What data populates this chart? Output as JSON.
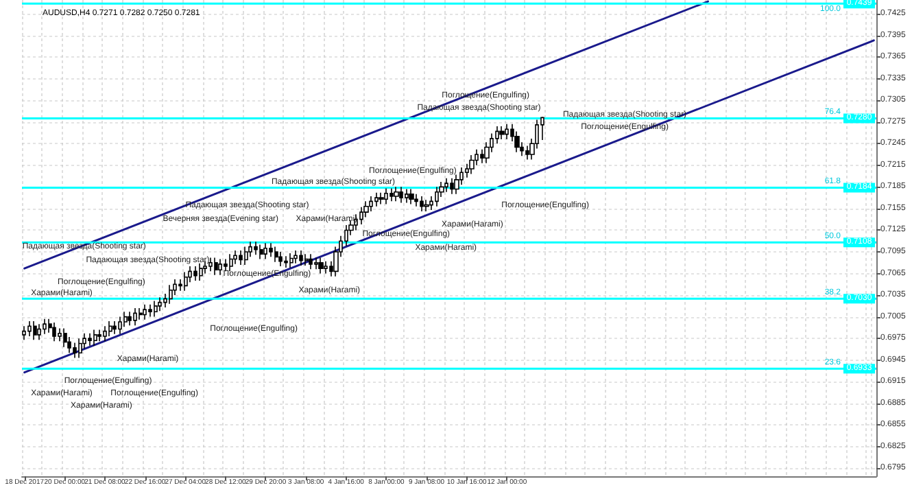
{
  "chart_data": {
    "type": "candlestick",
    "title": "AUDUSD,H4 0.7271 0.7282 0.7250 0.7281",
    "categories": [
      "18 Dec 2017",
      null,
      null,
      null,
      null,
      null,
      null,
      null,
      "20 Dec 00:00",
      null,
      null,
      null,
      null,
      null,
      null,
      null,
      "21 Dec 08:00",
      null,
      null,
      null,
      null,
      null,
      null,
      null,
      "22 Dec 16:00",
      null,
      null,
      null,
      null,
      null,
      null,
      null,
      "27 Dec 04:00",
      null,
      null,
      null,
      null,
      null,
      null,
      null,
      "28 Dec 12:00",
      null,
      null,
      null,
      null,
      null,
      null,
      null,
      "29 Dec 20:00",
      null,
      null,
      null,
      null,
      null,
      null,
      null,
      "3 Jan 08:00",
      null,
      null,
      null,
      null,
      null,
      null,
      null,
      "4 Jan 16:00",
      null,
      null,
      null,
      null,
      null,
      null,
      null,
      "8 Jan 00:00",
      null,
      null,
      null,
      null,
      null,
      null,
      null,
      "9 Jan 08:00",
      null,
      null,
      null,
      null,
      null,
      null,
      null,
      "10 Jan 16:00",
      null,
      null,
      null,
      null,
      null,
      null,
      null,
      "12 Jan 00:00",
      null,
      null,
      null,
      null,
      null,
      null,
      null,
      null,
      null,
      null,
      null,
      null,
      null,
      null,
      null,
      null,
      null,
      null,
      null,
      null,
      null,
      null,
      null,
      null,
      null,
      null,
      null,
      null,
      null,
      null,
      null,
      null,
      null,
      null,
      null,
      null,
      null,
      null,
      null,
      null,
      null,
      null,
      null,
      null,
      null,
      null,
      null,
      null,
      null,
      null,
      null,
      null,
      null,
      null,
      null,
      null,
      null,
      null,
      null,
      null,
      null,
      null,
      null,
      null,
      null,
      null,
      null,
      null,
      null,
      null,
      null,
      null,
      null
    ],
    "ohlc": [
      [
        0.698,
        0.6992,
        0.6973,
        0.6985
      ],
      [
        0.6985,
        0.6999,
        0.6978,
        0.6992
      ],
      [
        0.6992,
        0.6999,
        0.6973,
        0.698
      ],
      [
        0.698,
        0.6995,
        0.6973,
        0.6988
      ],
      [
        0.6988,
        0.7002,
        0.6981,
        0.6995
      ],
      [
        0.6995,
        0.7002,
        0.6983,
        0.699
      ],
      [
        0.699,
        0.6997,
        0.6971,
        0.6978
      ],
      [
        0.6978,
        0.6989,
        0.6971,
        0.6982
      ],
      [
        0.6982,
        0.6989,
        0.6963,
        0.697
      ],
      [
        0.697,
        0.6977,
        0.6955,
        0.6962
      ],
      [
        0.6962,
        0.6969,
        0.6948,
        0.6955
      ],
      [
        0.6955,
        0.6975,
        0.6948,
        0.6968
      ],
      [
        0.6968,
        0.6982,
        0.6961,
        0.6975
      ],
      [
        0.6975,
        0.6982,
        0.6965,
        0.6972
      ],
      [
        0.6972,
        0.6987,
        0.6965,
        0.698
      ],
      [
        0.698,
        0.6987,
        0.6971,
        0.6978
      ],
      [
        0.6978,
        0.6992,
        0.6971,
        0.6985
      ],
      [
        0.6985,
        0.6999,
        0.6978,
        0.6992
      ],
      [
        0.6992,
        0.6999,
        0.6981,
        0.6988
      ],
      [
        0.6988,
        0.7005,
        0.6981,
        0.6998
      ],
      [
        0.6998,
        0.7012,
        0.6991,
        0.7005
      ],
      [
        0.7005,
        0.7012,
        0.6993,
        0.7
      ],
      [
        0.7,
        0.7017,
        0.6993,
        0.701
      ],
      [
        0.701,
        0.7017,
        0.7001,
        0.7008
      ],
      [
        0.7008,
        0.7022,
        0.7001,
        0.7015
      ],
      [
        0.7015,
        0.7022,
        0.7005,
        0.7012
      ],
      [
        0.7012,
        0.7027,
        0.7005,
        0.702
      ],
      [
        0.702,
        0.7032,
        0.7013,
        0.7025
      ],
      [
        0.7025,
        0.7037,
        0.7018,
        0.703
      ],
      [
        0.703,
        0.7049,
        0.7023,
        0.7042
      ],
      [
        0.7042,
        0.7057,
        0.7035,
        0.705
      ],
      [
        0.705,
        0.7057,
        0.7041,
        0.7048
      ],
      [
        0.7048,
        0.7067,
        0.7041,
        0.706
      ],
      [
        0.706,
        0.7075,
        0.7053,
        0.7068
      ],
      [
        0.7068,
        0.7075,
        0.7055,
        0.7062
      ],
      [
        0.7062,
        0.7079,
        0.7055,
        0.7072
      ],
      [
        0.7072,
        0.7082,
        0.7065,
        0.7075
      ],
      [
        0.7075,
        0.7087,
        0.7068,
        0.708
      ],
      [
        0.708,
        0.7087,
        0.7063,
        0.707
      ],
      [
        0.707,
        0.7085,
        0.7063,
        0.7078
      ],
      [
        0.7078,
        0.7085,
        0.7068,
        0.7075
      ],
      [
        0.7075,
        0.7092,
        0.7068,
        0.7085
      ],
      [
        0.7085,
        0.7097,
        0.7078,
        0.709
      ],
      [
        0.709,
        0.7097,
        0.7077,
        0.7084
      ],
      [
        0.7084,
        0.7102,
        0.7077,
        0.7095
      ],
      [
        0.7095,
        0.7109,
        0.7088,
        0.7102
      ],
      [
        0.7102,
        0.7109,
        0.7091,
        0.7098
      ],
      [
        0.7098,
        0.7105,
        0.7085,
        0.7092
      ],
      [
        0.7092,
        0.7107,
        0.7085,
        0.71
      ],
      [
        0.71,
        0.7107,
        0.7088,
        0.7095
      ],
      [
        0.7095,
        0.7102,
        0.7081,
        0.7088
      ],
      [
        0.7088,
        0.7095,
        0.7075,
        0.7082
      ],
      [
        0.7082,
        0.7089,
        0.7073,
        0.708
      ],
      [
        0.708,
        0.7093,
        0.7073,
        0.7086
      ],
      [
        0.7086,
        0.7097,
        0.7079,
        0.709
      ],
      [
        0.709,
        0.7097,
        0.7076,
        0.7083
      ],
      [
        0.7083,
        0.7092,
        0.7076,
        0.7085
      ],
      [
        0.7085,
        0.7092,
        0.7071,
        0.7078
      ],
      [
        0.7078,
        0.7087,
        0.7071,
        0.708
      ],
      [
        0.708,
        0.7087,
        0.7065,
        0.7072
      ],
      [
        0.7072,
        0.7082,
        0.7065,
        0.7075
      ],
      [
        0.7075,
        0.7082,
        0.7061,
        0.7068
      ],
      [
        0.7068,
        0.7102,
        0.7061,
        0.7095
      ],
      [
        0.7095,
        0.7117,
        0.7088,
        0.711
      ],
      [
        0.711,
        0.7132,
        0.7103,
        0.7125
      ],
      [
        0.7125,
        0.7139,
        0.7118,
        0.7132
      ],
      [
        0.7132,
        0.7147,
        0.7125,
        0.714
      ],
      [
        0.714,
        0.7157,
        0.7133,
        0.715
      ],
      [
        0.715,
        0.7165,
        0.7143,
        0.7158
      ],
      [
        0.7158,
        0.7172,
        0.7151,
        0.7165
      ],
      [
        0.7165,
        0.7177,
        0.7158,
        0.717
      ],
      [
        0.717,
        0.7177,
        0.7161,
        0.7168
      ],
      [
        0.7168,
        0.7183,
        0.7161,
        0.7176
      ],
      [
        0.7176,
        0.7183,
        0.7165,
        0.7172
      ],
      [
        0.7172,
        0.7185,
        0.7165,
        0.7178
      ],
      [
        0.7178,
        0.7185,
        0.7163,
        0.717
      ],
      [
        0.717,
        0.7182,
        0.7163,
        0.7175
      ],
      [
        0.7175,
        0.7182,
        0.7161,
        0.7168
      ],
      [
        0.7168,
        0.7175,
        0.7158,
        0.7165
      ],
      [
        0.7165,
        0.7172,
        0.7151,
        0.7158
      ],
      [
        0.7158,
        0.7167,
        0.7151,
        0.716
      ],
      [
        0.716,
        0.7172,
        0.7153,
        0.7165
      ],
      [
        0.7165,
        0.7185,
        0.7158,
        0.7178
      ],
      [
        0.7178,
        0.7192,
        0.7171,
        0.7185
      ],
      [
        0.7185,
        0.7197,
        0.7178,
        0.719
      ],
      [
        0.719,
        0.7197,
        0.7175,
        0.7182
      ],
      [
        0.7182,
        0.7202,
        0.7175,
        0.7195
      ],
      [
        0.7195,
        0.7212,
        0.7188,
        0.7205
      ],
      [
        0.7205,
        0.7217,
        0.7198,
        0.721
      ],
      [
        0.721,
        0.7229,
        0.7203,
        0.7222
      ],
      [
        0.7222,
        0.7237,
        0.7215,
        0.723
      ],
      [
        0.723,
        0.7237,
        0.7218,
        0.7225
      ],
      [
        0.7225,
        0.7247,
        0.7218,
        0.724
      ],
      [
        0.724,
        0.7259,
        0.7233,
        0.7252
      ],
      [
        0.7252,
        0.7269,
        0.7245,
        0.7262
      ],
      [
        0.7262,
        0.7269,
        0.7251,
        0.7258
      ],
      [
        0.7258,
        0.7272,
        0.7251,
        0.7265
      ],
      [
        0.7265,
        0.7272,
        0.7248,
        0.7255
      ],
      [
        0.7255,
        0.7262,
        0.7233,
        0.724
      ],
      [
        0.724,
        0.7247,
        0.7228,
        0.7235
      ],
      [
        0.7235,
        0.7242,
        0.7223,
        0.723
      ],
      [
        0.723,
        0.7252,
        0.7223,
        0.7245
      ],
      [
        0.7245,
        0.7278,
        0.7238,
        0.7271
      ],
      [
        0.7271,
        0.7282,
        0.725,
        0.7281
      ],
      null,
      null,
      null,
      null,
      null,
      null,
      null,
      null,
      null,
      null,
      null,
      null,
      null,
      null,
      null,
      null,
      null,
      null,
      null,
      null,
      null,
      null,
      null,
      null,
      null,
      null,
      null,
      null,
      null,
      null,
      null,
      null,
      null,
      null,
      null,
      null,
      null,
      null,
      null,
      null,
      null,
      null,
      null,
      null,
      null,
      null,
      null,
      null,
      null,
      null,
      null,
      null,
      null,
      null,
      null,
      null,
      null,
      null,
      null,
      null,
      null,
      null,
      null,
      null,
      null,
      null
    ],
    "series": [
      {
        "type": "line",
        "color": "#1a1a8c",
        "values": [
          0.7072,
          null,
          null,
          null,
          null,
          null,
          null,
          null,
          null,
          null,
          null,
          null,
          null,
          null,
          null,
          null,
          null,
          null,
          null,
          null,
          null,
          null,
          null,
          null,
          null,
          null,
          null,
          null,
          null,
          null,
          null,
          null,
          null,
          null,
          null,
          null,
          null,
          null,
          null,
          null,
          null,
          null,
          null,
          null,
          null,
          null,
          null,
          null,
          null,
          null,
          null,
          null,
          null,
          null,
          null,
          null,
          null,
          null,
          null,
          null,
          null,
          null,
          null,
          null,
          null,
          null,
          null,
          null,
          null,
          null,
          null,
          null,
          null,
          null,
          null,
          null,
          null,
          null,
          null,
          null,
          null,
          null,
          null,
          null,
          null,
          null,
          null,
          null,
          null,
          null,
          null,
          null,
          null,
          null,
          null,
          null,
          null,
          null,
          null,
          null,
          null,
          null,
          null,
          null,
          null,
          null,
          null,
          null,
          null,
          null,
          null,
          null,
          null,
          null,
          null,
          null,
          null,
          null,
          null,
          null,
          null,
          null,
          null,
          null,
          null,
          null,
          null,
          null,
          null,
          null,
          null,
          null,
          null,
          null,
          null,
          null,
          0.7442,
          null,
          null,
          null,
          null,
          null,
          null,
          null,
          null,
          null,
          null,
          null,
          null,
          null,
          null,
          null,
          null,
          null,
          null,
          null,
          null,
          null,
          null,
          null,
          null,
          null,
          null,
          null,
          null,
          null,
          null,
          null,
          null,
          null
        ]
      },
      {
        "type": "line",
        "color": "#1a1a8c",
        "values": [
          0.6928,
          null,
          null,
          null,
          null,
          null,
          null,
          null,
          null,
          null,
          null,
          null,
          null,
          null,
          null,
          null,
          null,
          null,
          null,
          null,
          null,
          null,
          null,
          null,
          null,
          null,
          null,
          null,
          null,
          null,
          null,
          null,
          null,
          null,
          null,
          null,
          null,
          null,
          null,
          null,
          null,
          null,
          null,
          null,
          null,
          null,
          null,
          null,
          null,
          null,
          null,
          null,
          null,
          null,
          null,
          null,
          null,
          null,
          null,
          null,
          null,
          null,
          null,
          null,
          null,
          null,
          null,
          null,
          null,
          null,
          null,
          null,
          null,
          null,
          null,
          null,
          null,
          null,
          null,
          null,
          null,
          null,
          null,
          null,
          null,
          null,
          null,
          null,
          null,
          null,
          null,
          null,
          null,
          null,
          null,
          null,
          null,
          null,
          null,
          null,
          null,
          null,
          null,
          null,
          null,
          null,
          null,
          null,
          null,
          null,
          null,
          null,
          null,
          null,
          null,
          null,
          null,
          null,
          null,
          null,
          null,
          null,
          null,
          null,
          null,
          null,
          null,
          null,
          null,
          null,
          null,
          null,
          null,
          null,
          null,
          null,
          null,
          null,
          null,
          null,
          null,
          null,
          null,
          null,
          null,
          null,
          null,
          null,
          null,
          null,
          null,
          null,
          null,
          null,
          null,
          null,
          null,
          null,
          null,
          null,
          null,
          null,
          null,
          null,
          null,
          null,
          null,
          null,
          null,
          0.7388
        ]
      }
    ],
    "marker": "none",
    "line_style": "solid",
    "ylim": [
      0.6784,
      0.7444
    ],
    "yticks": [
      0.6795,
      0.6825,
      0.6855,
      0.6885,
      0.6915,
      0.6945,
      0.6975,
      0.7005,
      0.7035,
      0.7065,
      0.7095,
      0.7125,
      0.7155,
      0.7185,
      0.7215,
      0.7245,
      0.7275,
      0.7305,
      0.7335,
      0.7365,
      0.7395,
      0.7425
    ],
    "grid": true,
    "ref_lines": [
      {
        "axis": "y",
        "value": 0.7439,
        "label": "0.7439",
        "color": "#00ffff"
      },
      {
        "axis": "y",
        "value": 0.728,
        "label": "0.7280",
        "color": "#00ffff"
      },
      {
        "axis": "y",
        "value": 0.7184,
        "label": "0.7184",
        "color": "#00ffff"
      },
      {
        "axis": "y",
        "value": 0.7108,
        "label": "0.7108",
        "color": "#00ffff"
      },
      {
        "axis": "y",
        "value": 0.703,
        "label": "0.7030",
        "color": "#00ffff"
      },
      {
        "axis": "y",
        "value": 0.6933,
        "label": "0.6933",
        "color": "#00ffff"
      }
    ],
    "annotations": [
      "Поглощение(Engulfing)",
      "Падающая звезда(Shooting star)",
      "Падающая звезда(Shooting star)",
      "Поглощение(Engulfing)",
      "Поглощение(Engulfing)",
      "Падающая звезда(Shooting star)",
      "Харами(Harami)",
      "Поглощение(Engulfing)",
      "Поглощение(Engulfing)",
      "Харами(Harami)",
      "Падающая звезда(Shooting star)",
      "Вечерняя звезда(Evening star)",
      "Харами(Harami)",
      "Поглощение(Engulfing)",
      "Харами(Harami)",
      "Падающая звезда(Shooting star)",
      "Поглощение(Engulfing)",
      "Поглощение(Engulfing)",
      "Харами(Harami)",
      "Падающая звезда(Shooting star)",
      "Харами(Harami)",
      "Поглощение(Engulfing)",
      "Харами(Harami)",
      "Поглощение(Engulfing)",
      "Харами(Harami)",
      "100.0",
      "76.4",
      "61.8",
      "50.0",
      "38.2",
      "23.6"
    ]
  }
}
